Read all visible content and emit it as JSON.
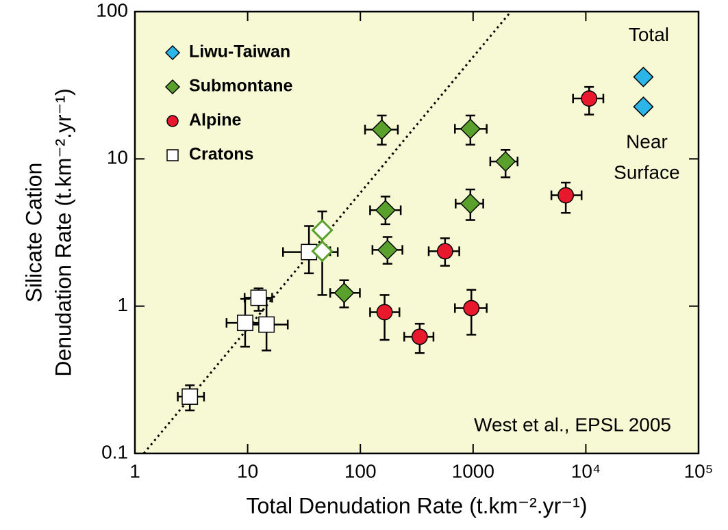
{
  "chart_data": {
    "type": "scatter",
    "xlabel": "Total Denudation Rate (t.km⁻².yr⁻¹)",
    "ylabel": [
      "Silicate Cation",
      "Denudation Rate (t.km⁻².yr⁻¹)"
    ],
    "xscale": "log",
    "yscale": "log",
    "xlim": [
      1,
      100000
    ],
    "ylim": [
      0.1,
      100
    ],
    "xticks": [
      1,
      10,
      100,
      1000,
      {
        "value": 10000,
        "label": "10⁴"
      },
      {
        "value": 100000,
        "label": "10⁵"
      }
    ],
    "yticks": [
      0.1,
      1,
      10,
      100
    ],
    "legend": "upper left",
    "background": "#f7f9d4",
    "reference_line": {
      "x": [
        1.2,
        2160
      ],
      "y": [
        0.1,
        100
      ],
      "color": "#000000",
      "style": "dotted"
    },
    "source": "West et al., EPSL 2005",
    "series": [
      {
        "name": "Liwu-Taiwan",
        "marker": "diamond",
        "color": "#2cb5e8",
        "edgecolor": "#000000",
        "x": [
          32400,
          32400
        ],
        "values": [
          36,
          22.6
        ],
        "x_low": [
          32400,
          32400
        ],
        "x_high": [
          32400,
          32400
        ],
        "y_low": [
          36,
          22.6
        ],
        "y_high": [
          36,
          22.6
        ],
        "annotations": {
          "total": "Total",
          "near_surface": [
            "Near",
            "Surface"
          ]
        }
      },
      {
        "name": "Submontane",
        "marker": "diamond",
        "color": "#5aa02c",
        "edgecolor": "#000000",
        "x": [
          155,
          946,
          1940,
          167,
          946,
          174,
          71.8
        ],
        "values": [
          15.8,
          16,
          9.6,
          4.48,
          4.97,
          2.41,
          1.23
        ],
        "x_low": [
          110,
          690,
          1420,
          122,
          700,
          128,
          54
        ],
        "x_high": [
          215,
          1320,
          2480,
          228,
          1230,
          236,
          99
        ],
        "y_low": [
          12.5,
          12.5,
          7.5,
          3.6,
          3.85,
          1.94,
          0.98
        ],
        "y_high": [
          19.7,
          19.7,
          11.5,
          5.55,
          6.2,
          2.95,
          1.5
        ]
      },
      {
        "name": "Alpine",
        "marker": "circle",
        "color": "#e8192c",
        "edgecolor": "#000000",
        "x": [
          10700,
          6640,
          564,
          164,
          965,
          336
        ],
        "values": [
          25.7,
          5.66,
          2.36,
          0.91,
          0.97,
          0.62
        ],
        "x_low": [
          7700,
          4950,
          404,
          122,
          690,
          245
        ],
        "x_high": [
          14300,
          9170,
          754,
          222,
          1320,
          445
        ],
        "y_low": [
          20,
          4.3,
          1.88,
          0.59,
          0.64,
          0.48
        ],
        "y_high": [
          30.8,
          6.9,
          2.89,
          1.19,
          1.29,
          0.76
        ]
      },
      {
        "name": "Cratons",
        "marker": "square",
        "color": "#ffffff",
        "edgecolor": "#000000",
        "x": [
          3.07,
          9.5,
          12.5,
          14.7,
          35
        ],
        "values": [
          0.243,
          0.77,
          1.14,
          0.75,
          2.33
        ],
        "x_low": [
          2.4,
          6.5,
          9.4,
          9.4,
          20.6
        ],
        "x_high": [
          4.1,
          14.5,
          16.5,
          22.7,
          63
        ],
        "y_low": [
          0.196,
          0.53,
          0.93,
          0.5,
          1.67
        ],
        "y_high": [
          0.29,
          1.12,
          1.32,
          1.12,
          3.5
        ]
      },
      {
        "marker": "diamond",
        "color": "#ffffff",
        "edgecolor": "#5aa02c",
        "x": [
          45.9,
          45.9
        ],
        "values": [
          3.28,
          2.36
        ],
        "x_low": [
          45.9,
          40
        ],
        "x_high": [
          45.9,
          54
        ],
        "y_low": [
          2.6,
          1.19
        ],
        "y_high": [
          4.4,
          3.0
        ]
      }
    ]
  }
}
